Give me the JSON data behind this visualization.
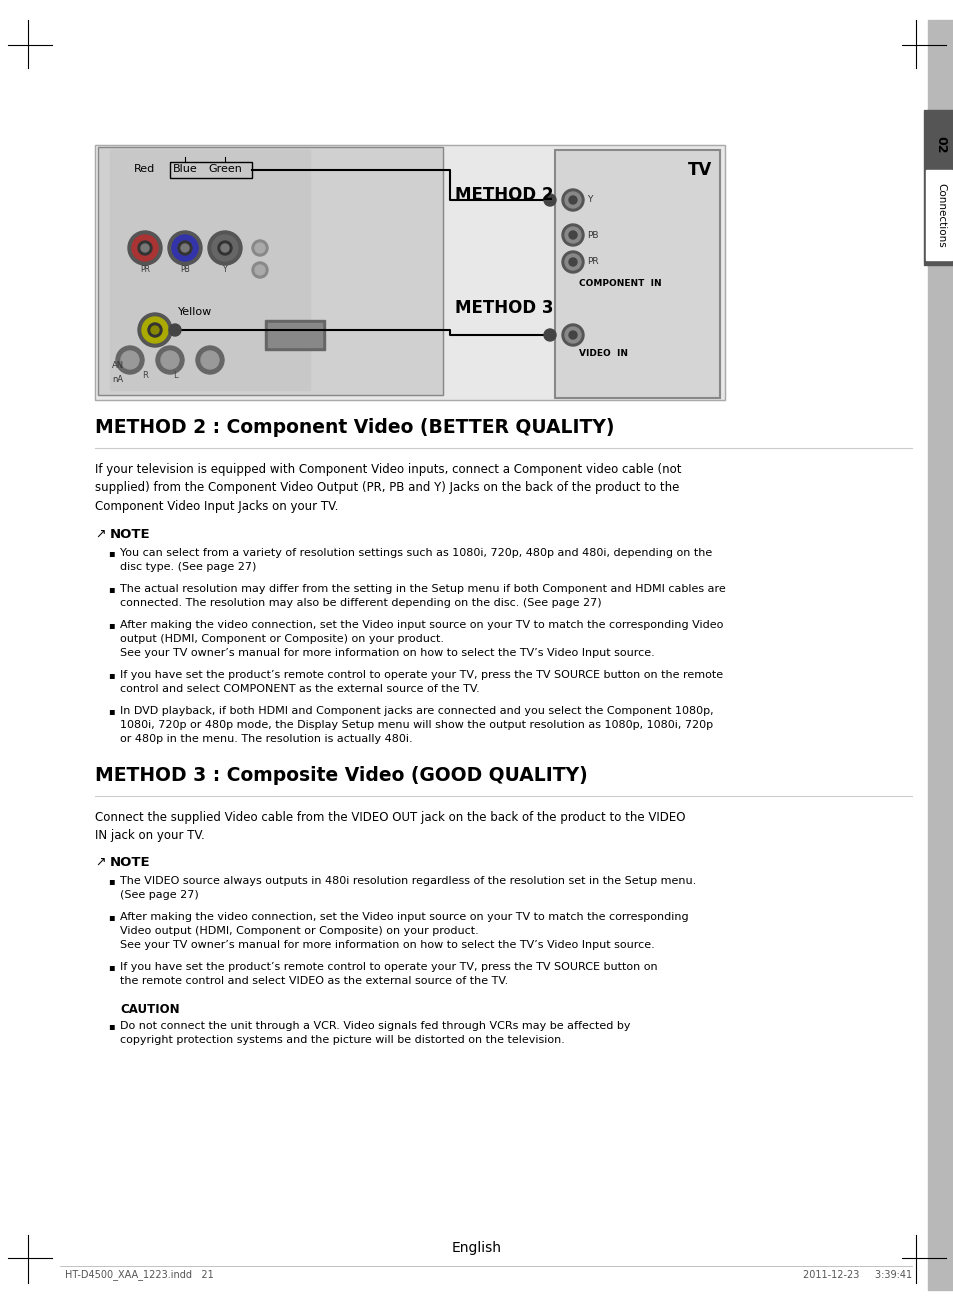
{
  "page_bg": "#ffffff",
  "title2": "METHOD 2 : Component Video (BETTER QUALITY)",
  "title3": "METHOD 3 : Composite Video (GOOD QUALITY)",
  "method2_intro": "If your television is equipped with Component Video inputs, connect a Component video cable (not\nsupplied) from the Component Video Output (PR, PB and Y) Jacks on the back of the product to the\nComponent Video Input Jacks on your TV.",
  "method3_intro": "Connect the supplied Video cable from the VIDEO OUT jack on the back of the product to the VIDEO\nIN jack on your TV.",
  "method2_notes": [
    "You can select from a variety of resolution settings such as 1080i, 720p, 480p and 480i, depending on the\ndisc type. (See page 27)",
    "The actual resolution may differ from the setting in the Setup menu if both Component and HDMI cables are\nconnected. The resolution may also be different depending on the disc. (See page 27)",
    "After making the video connection, set the Video input source on your TV to match the corresponding Video\noutput (HDMI, Component or Composite) on your product.\nSee your TV owner’s manual for more information on how to select the TV’s Video Input source.",
    "If you have set the product’s remote control to operate your TV, press the TV SOURCE button on the remote\ncontrol and select COMPONENT as the external source of the TV.",
    "In DVD playback, if both HDMI and Component jacks are connected and you select the Component 1080p,\n1080i, 720p or 480p mode, the Display Setup menu will show the output resolution as 1080p, 1080i, 720p\nor 480p in the menu. The resolution is actually 480i."
  ],
  "method3_notes": [
    "The VIDEO source always outputs in 480i resolution regardless of the resolution set in the Setup menu.\n(See page 27)",
    "After making the video connection, set the Video input source on your TV to match the corresponding\nVideo output (HDMI, Component or Composite) on your product.\nSee your TV owner’s manual for more information on how to select the TV’s Video Input source.",
    "If you have set the product’s remote control to operate your TV, press the TV SOURCE button on\nthe remote control and select VIDEO as the external source of the TV."
  ],
  "caution_label": "CAUTION",
  "caution_notes": [
    "Do not connect the unit through a VCR. Video signals fed through VCRs may be affected by\ncopyright protection systems and the picture will be distorted on the television."
  ],
  "footer_text": "English",
  "footer_file": "HT-D4500_XAA_1223.indd   21",
  "footer_date": "2011-12-23     3:39:41",
  "sidebar_num": "02",
  "sidebar_text": "Connections"
}
